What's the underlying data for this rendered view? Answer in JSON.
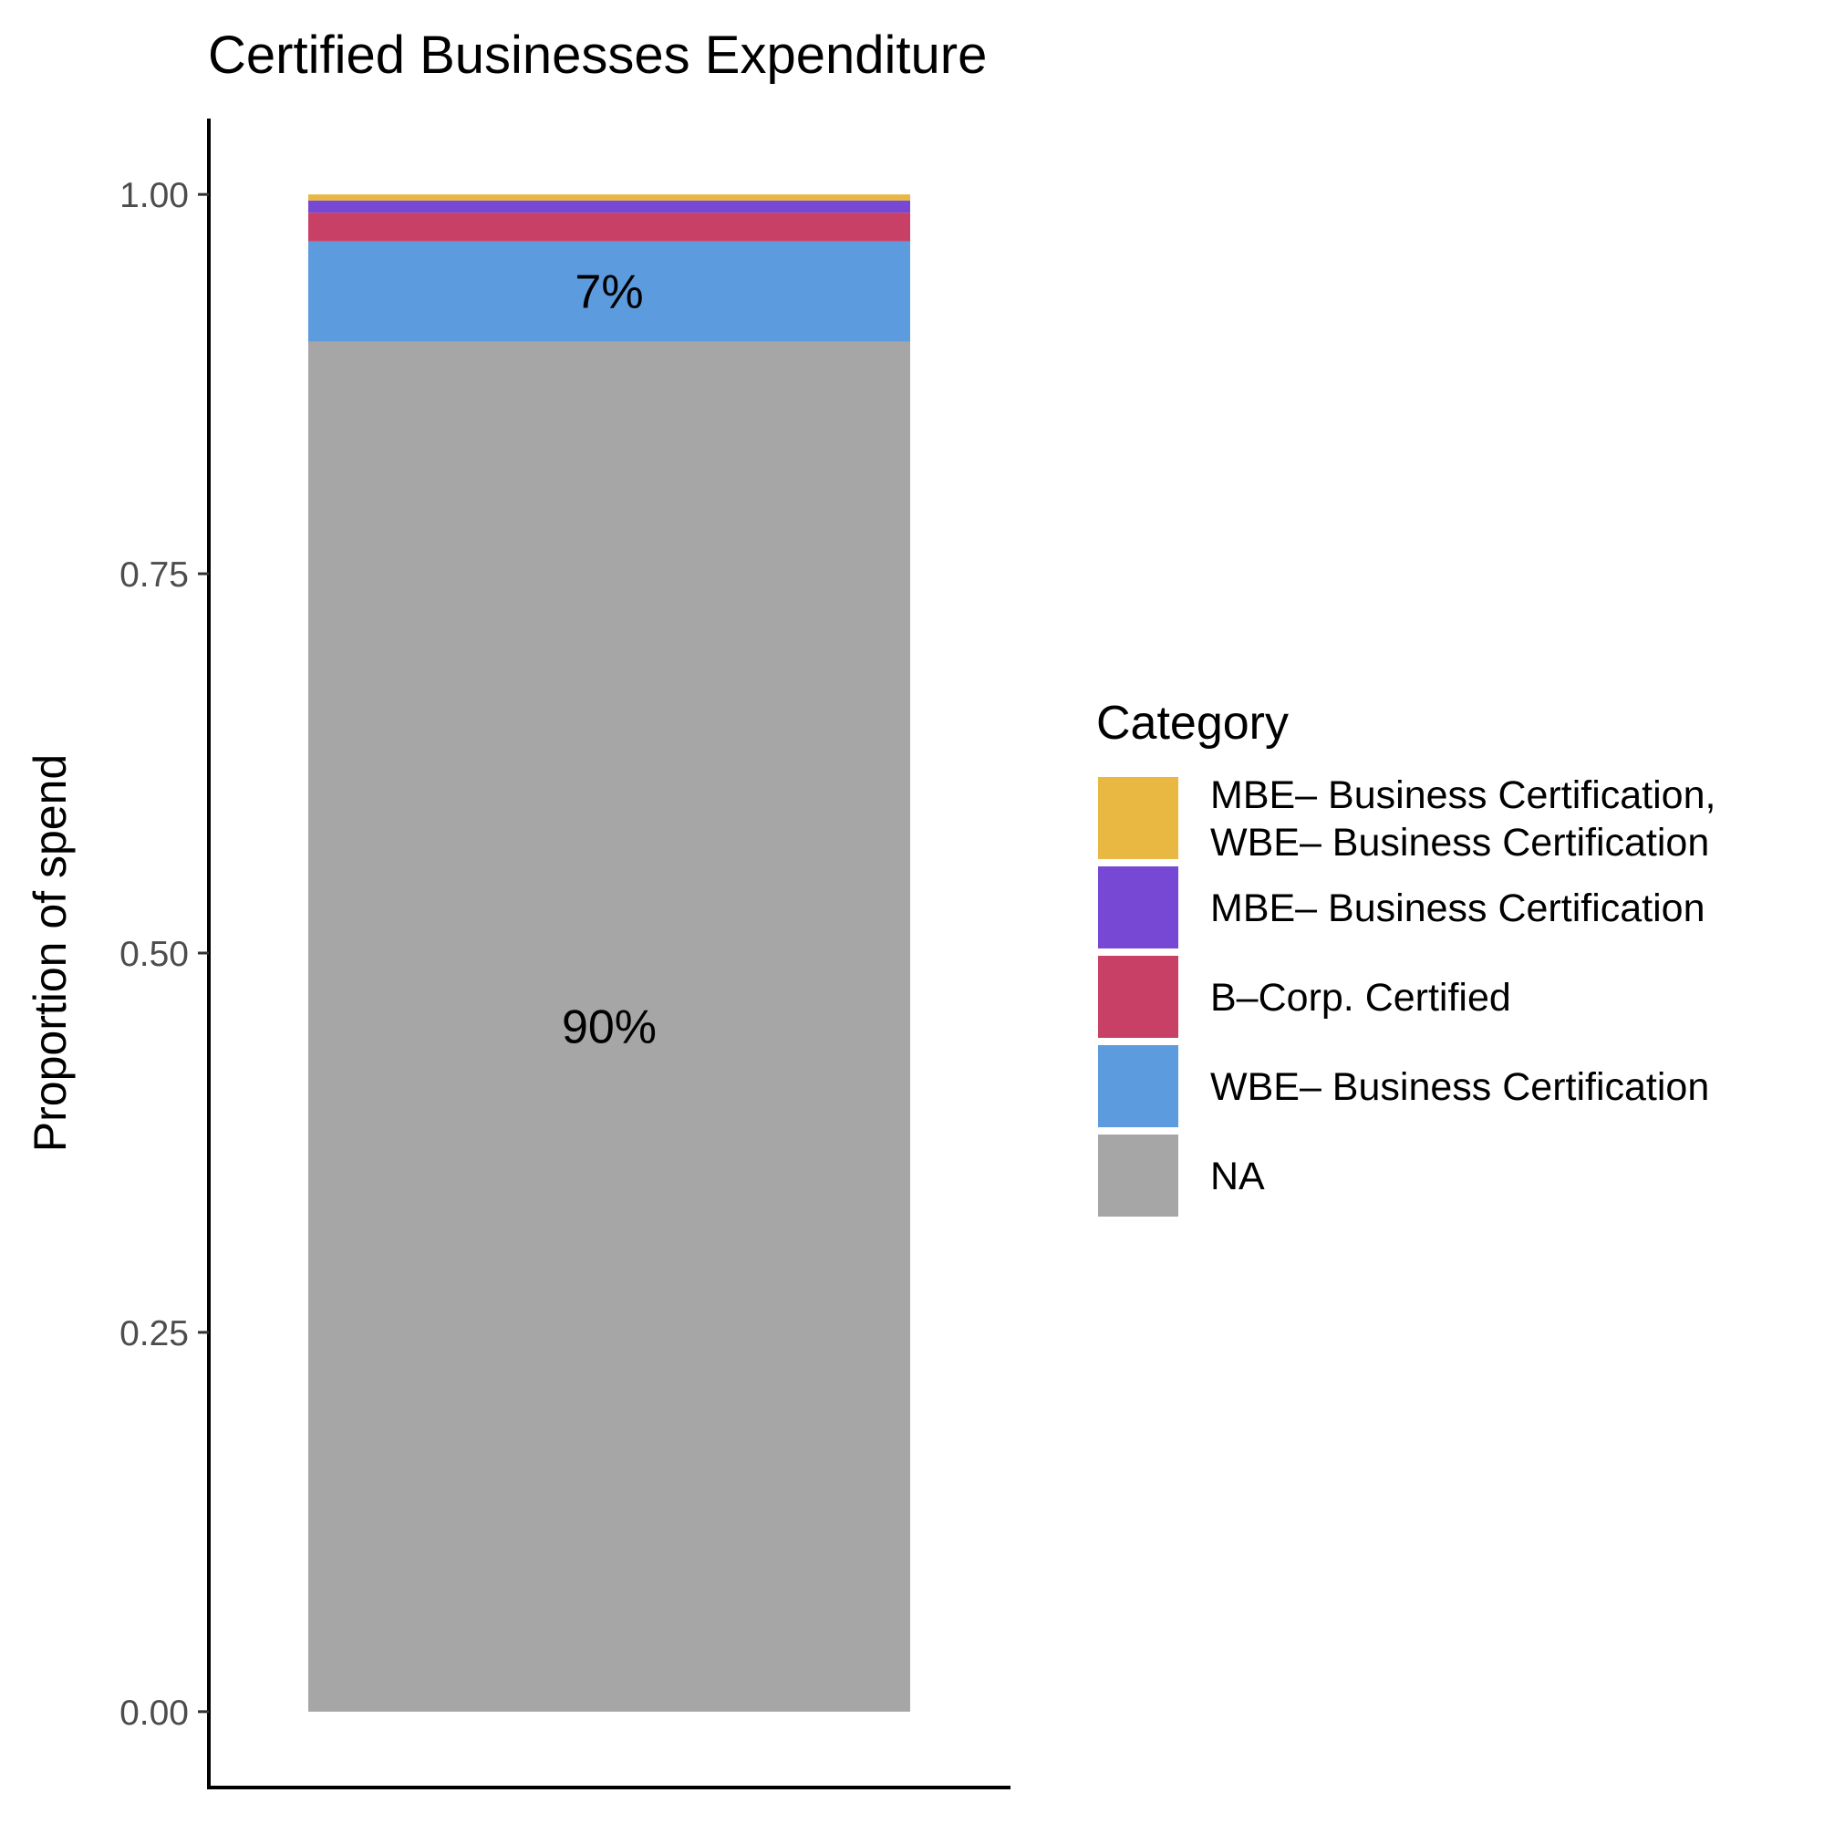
{
  "chart_data": {
    "type": "bar",
    "stacked": true,
    "title": "Certified Businesses Expenditure",
    "xlabel": "",
    "ylabel": "Proportion of spend",
    "ylim": [
      -0.05,
      1.05
    ],
    "yticks": [
      "0.00",
      "0.25",
      "0.50",
      "0.75",
      "1.00"
    ],
    "ytick_values": [
      0,
      0.25,
      0.5,
      0.75,
      1.0
    ],
    "grid": false,
    "legend": {
      "title": "Category",
      "placement": "right"
    },
    "categories": [
      ""
    ],
    "series": [
      {
        "name": "NA",
        "values": [
          0.903
        ],
        "color": "#A6A6A6",
        "label": "90%"
      },
      {
        "name": "WBE– Business Certification",
        "values": [
          0.066
        ],
        "color": "#5B9BDE",
        "label": "7%"
      },
      {
        "name": "B–Corp. Certified",
        "values": [
          0.019
        ],
        "color": "#C94066",
        "label": ""
      },
      {
        "name": "MBE– Business Certification",
        "values": [
          0.008
        ],
        "color": "#7648D4",
        "label": ""
      },
      {
        "name": "MBE– Business Certification,\nWBE– Business Certification",
        "values": [
          0.004
        ],
        "color": "#E8B843",
        "label": ""
      }
    ]
  }
}
